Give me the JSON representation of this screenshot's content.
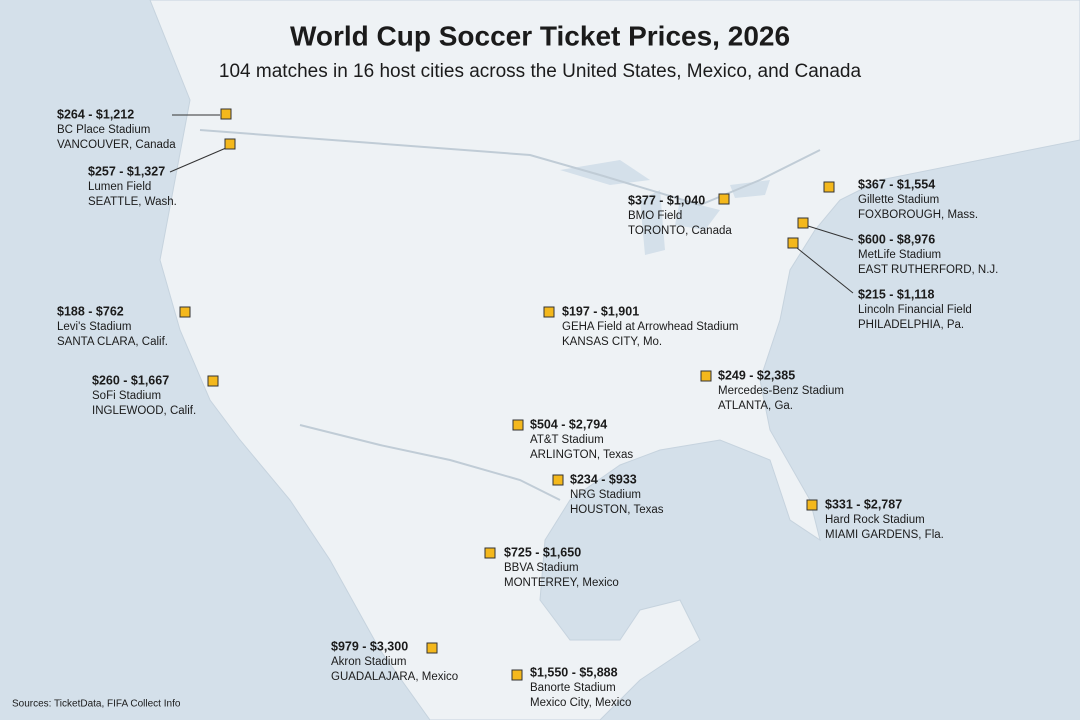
{
  "header": {
    "title": "World Cup Soccer Ticket Prices, 2026",
    "subtitle": "104 matches in 16 host cities across the United States, Mexico, and Canada"
  },
  "venues": [
    {
      "price": "$264 - $1,212",
      "stadium": "BC Place Stadium",
      "city": "VANCOUVER, Canada"
    },
    {
      "price": "$257 - $1,327",
      "stadium": "Lumen Field",
      "city": "SEATTLE, Wash."
    },
    {
      "price": "$377 - $1,040",
      "stadium": "BMO Field",
      "city": "TORONTO, Canada"
    },
    {
      "price": "$367 - $1,554",
      "stadium": "Gillette Stadium",
      "city": "FOXBOROUGH, Mass."
    },
    {
      "price": "$600 - $8,976",
      "stadium": "MetLife Stadium",
      "city": "EAST RUTHERFORD, N.J."
    },
    {
      "price": "$215 - $1,118",
      "stadium": "Lincoln Financial Field",
      "city": "PHILADELPHIA, Pa."
    },
    {
      "price": "$188 - $762",
      "stadium": "Levi's Stadium",
      "city": "SANTA CLARA, Calif."
    },
    {
      "price": "$197 - $1,901",
      "stadium": "GEHA Field at Arrowhead Stadium",
      "city": "KANSAS CITY, Mo."
    },
    {
      "price": "$260 - $1,667",
      "stadium": "SoFi Stadium",
      "city": "INGLEWOOD, Calif."
    },
    {
      "price": "$249 - $2,385",
      "stadium": "Mercedes-Benz Stadium",
      "city": "ATLANTA, Ga."
    },
    {
      "price": "$504 - $2,794",
      "stadium": "AT&T Stadium",
      "city": "ARLINGTON, Texas"
    },
    {
      "price": "$234 - $933",
      "stadium": "NRG Stadium",
      "city": "HOUSTON, Texas"
    },
    {
      "price": "$331 - $2,787",
      "stadium": "Hard Rock Stadium",
      "city": "MIAMI GARDENS, Fla."
    },
    {
      "price": "$725 - $1,650",
      "stadium": "BBVA Stadium",
      "city": "MONTERREY, Mexico"
    },
    {
      "price": "$979 - $3,300",
      "stadium": "Akron Stadium",
      "city": "GUADALAJARA, Mexico"
    },
    {
      "price": "$1,550 - $5,888",
      "stadium": "Banorte Stadium",
      "city": "Mexico City, Mexico"
    }
  ],
  "footer": {
    "source": "Sources: TicketData, FIFA Collect Info"
  }
}
